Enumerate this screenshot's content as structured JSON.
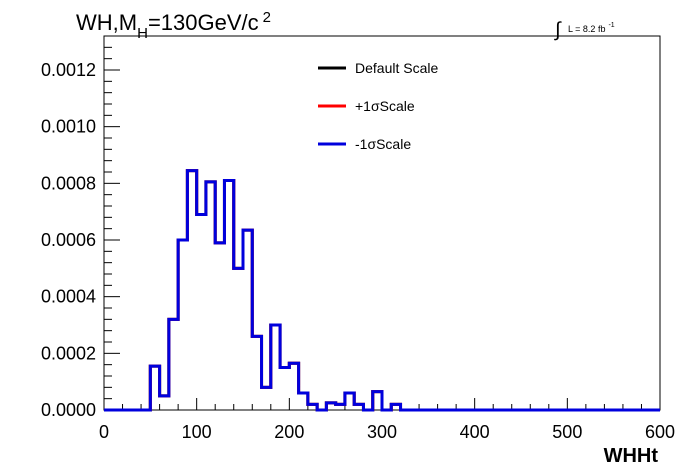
{
  "chart_data": {
    "type": "line",
    "title": {
      "main": "WH,M",
      "sub": "H",
      "rest": "=130GeV/c",
      "sup": "2"
    },
    "lumi": {
      "integral": "∫",
      "text": "L = 8.2 fb",
      "sup": "-1"
    },
    "xlabel": "WHHt",
    "ylabel": "",
    "xlim": [
      0,
      600
    ],
    "ylim": [
      0,
      0.00132
    ],
    "xticks": [
      0,
      100,
      200,
      300,
      400,
      500,
      600
    ],
    "xtick_labels": [
      "0",
      "100",
      "200",
      "300",
      "400",
      "500",
      "600"
    ],
    "yticks": [
      0,
      0.0002,
      0.0004,
      0.0006,
      0.0008,
      0.001,
      0.0012
    ],
    "ytick_labels": [
      "0.0000",
      "0.0002",
      "0.0004",
      "0.0006",
      "0.0008",
      "0.0010",
      "0.0012"
    ],
    "grid": false,
    "legend_position": "top-right",
    "bin_edges": [
      0,
      10,
      20,
      30,
      40,
      50,
      60,
      70,
      80,
      90,
      100,
      110,
      120,
      130,
      140,
      150,
      160,
      170,
      180,
      190,
      200,
      210,
      220,
      230,
      240,
      250,
      260,
      270,
      280,
      290,
      300,
      310,
      320,
      330,
      340,
      350,
      360,
      370,
      380,
      390,
      400,
      410,
      420,
      430,
      440,
      450,
      460,
      470,
      480,
      490,
      500,
      510,
      520,
      530,
      540,
      550,
      560,
      570,
      580,
      590,
      600
    ],
    "series": [
      {
        "name": "Default Scale",
        "color": "#000000",
        "values": [
          0,
          0,
          0,
          0,
          0,
          0.000155,
          5e-05,
          0.00032,
          0.0006,
          0.000845,
          0.00069,
          0.000805,
          0.00059,
          0.00081,
          0.0005,
          0.000635,
          0.00026,
          8e-05,
          0.0003,
          0.00015,
          0.000165,
          6e-05,
          2e-05,
          0,
          2.5e-05,
          2e-05,
          6e-05,
          2e-05,
          0,
          6.5e-05,
          0,
          2e-05,
          0,
          0,
          0,
          0,
          0,
          0,
          0,
          0,
          0,
          0,
          0,
          0,
          0,
          0,
          0,
          0,
          0,
          0,
          0,
          0,
          0,
          0,
          0,
          0,
          0,
          0,
          0,
          0
        ]
      },
      {
        "name": "+1σScale",
        "color": "#ff0000",
        "values": [
          0,
          0,
          0,
          0,
          0,
          0.000155,
          5e-05,
          0.00032,
          0.0006,
          0.000845,
          0.00069,
          0.000805,
          0.00059,
          0.00081,
          0.0005,
          0.000635,
          0.00026,
          8e-05,
          0.0003,
          0.00015,
          0.000165,
          6e-05,
          2e-05,
          0,
          2.5e-05,
          2e-05,
          6e-05,
          2e-05,
          0,
          6.5e-05,
          0,
          2e-05,
          0,
          0,
          0,
          0,
          0,
          0,
          0,
          0,
          0,
          0,
          0,
          0,
          0,
          0,
          0,
          0,
          0,
          0,
          0,
          0,
          0,
          0,
          0,
          0,
          0,
          0,
          0,
          0
        ]
      },
      {
        "name": "-1σScale",
        "color": "#0000dd",
        "values": [
          0,
          0,
          0,
          0,
          0,
          0.000155,
          5e-05,
          0.00032,
          0.0006,
          0.000845,
          0.00069,
          0.000805,
          0.00059,
          0.00081,
          0.0005,
          0.000635,
          0.00026,
          8e-05,
          0.0003,
          0.00015,
          0.000165,
          6e-05,
          2e-05,
          0,
          2.5e-05,
          2e-05,
          6e-05,
          2e-05,
          0,
          6.5e-05,
          0,
          2e-05,
          0,
          0,
          0,
          0,
          0,
          0,
          0,
          0,
          0,
          0,
          0,
          0,
          0,
          0,
          0,
          0,
          0,
          0,
          0,
          0,
          0,
          0,
          0,
          0,
          0,
          0,
          0,
          0
        ]
      }
    ]
  }
}
